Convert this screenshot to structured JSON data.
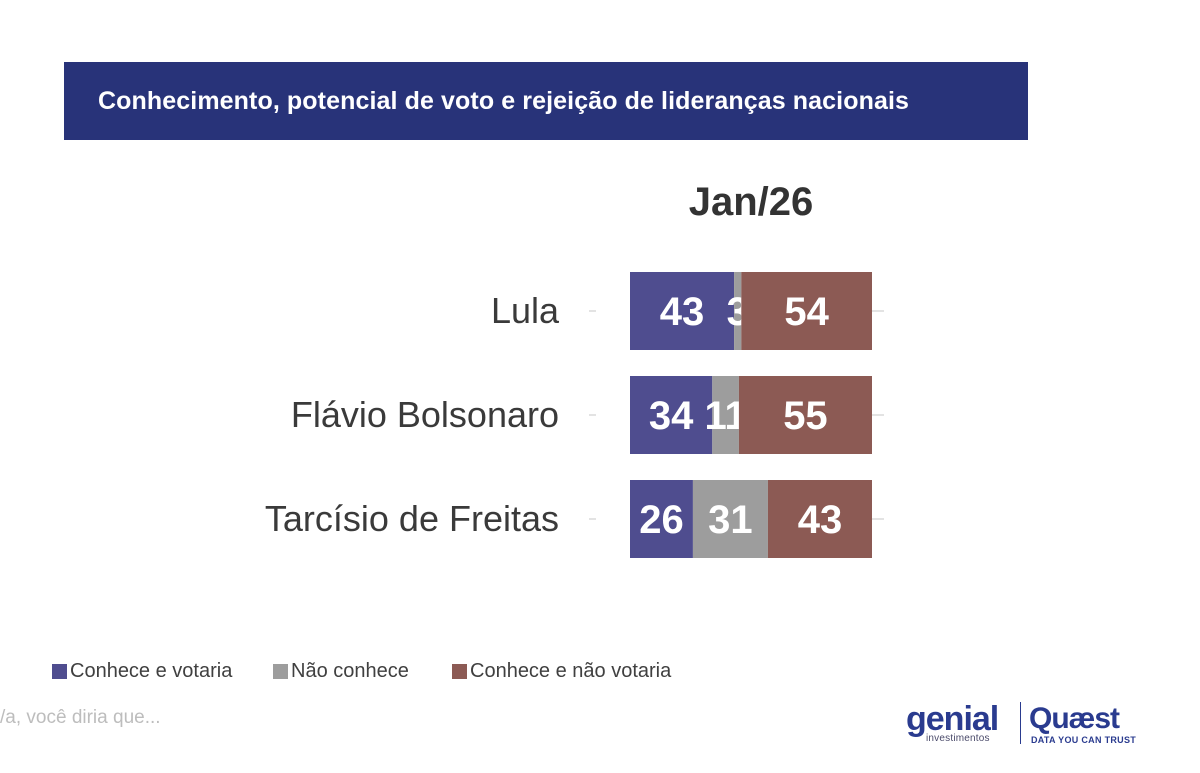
{
  "title": "Conhecimento, potencial de voto e rejeição de lideranças nacionais",
  "period": "Jan/26",
  "legend": [
    {
      "label": "Conhece e votaria",
      "color": "#4f4d8f"
    },
    {
      "label": "Não conhece",
      "color": "#9d9d9d"
    },
    {
      "label": "Conhece e não votaria",
      "color": "#8c5a54"
    }
  ],
  "footer_note": "/a, você diria que...",
  "logos": {
    "genial": "genial",
    "genial_sub": "investimentos",
    "quaest": "Quæst",
    "quaest_sub": "DATA YOU CAN TRUST"
  },
  "chart_data": {
    "type": "bar",
    "stacked": true,
    "orientation": "horizontal",
    "categories": [
      "Lula",
      "Flávio Bolsonaro",
      "Tarcísio de Freitas"
    ],
    "series": [
      {
        "name": "Conhece e votaria",
        "values": [
          43,
          34,
          26
        ],
        "color": "#4f4d8f"
      },
      {
        "name": "Não conhece",
        "values": [
          3,
          11,
          31
        ],
        "color": "#9d9d9d"
      },
      {
        "name": "Conhece e não votaria",
        "values": [
          54,
          55,
          43
        ],
        "color": "#8c5a54"
      }
    ],
    "xlim": [
      0,
      100
    ],
    "title": "Conhecimento, potencial de voto e rejeição de lideranças nacionais",
    "subtitle": "Jan/26",
    "legend_position": "bottom-left"
  }
}
